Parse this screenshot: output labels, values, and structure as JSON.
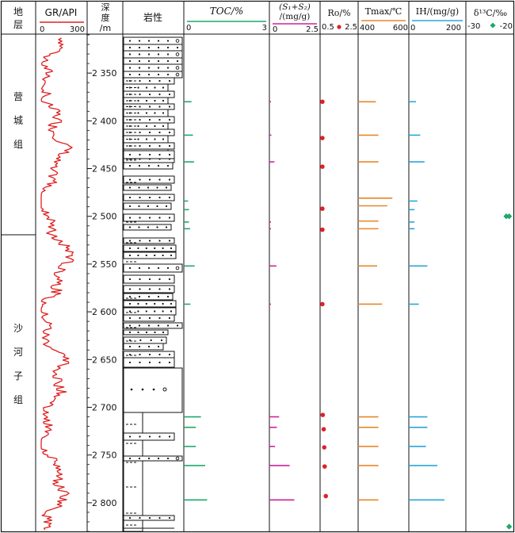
{
  "header": {
    "formation_title": "地层",
    "gr_title": "GR/API",
    "gr_min": "0",
    "gr_max": "300",
    "depth_title_1": "深",
    "depth_title_2": "度",
    "depth_title_3": "/m",
    "lith_title": "岩性",
    "toc_title": "TOC/%",
    "toc_min": "0",
    "toc_max": "3",
    "s_title_1": "(S₁+S₂)",
    "s_title_2": "/(mg/g)",
    "s_min": "0",
    "s_max": "2.5",
    "ro_title": "Ro/%",
    "ro_min": "0.5",
    "ro_max": "2.5",
    "tmax_title": "Tmax/℃",
    "tmax_min": "400",
    "tmax_max": "600",
    "ih_title": "IH/(mg/g)",
    "ih_min": "0",
    "ih_max": "200",
    "d13c_title": "δ¹³C/‰",
    "d13c_min": "-30",
    "d13c_max": "-20"
  },
  "formations": [
    {
      "name": "营城组",
      "chars": [
        "营",
        "城",
        "组"
      ]
    },
    {
      "name": "沙河子组",
      "chars": [
        "沙",
        "河",
        "子",
        "组"
      ]
    }
  ],
  "colors": {
    "gr": "#e02020",
    "toc": "#1fa86a",
    "s": "#d0229a",
    "ro": "#e0202a",
    "tmax": "#e8872a",
    "ih": "#28a6dc",
    "d13c": "#1fa86a",
    "border": "#111111"
  },
  "chart_data": {
    "type": "line",
    "y_axis": {
      "label": "深度/m",
      "range": [
        2310,
        2830
      ],
      "ticks": [
        "2 350",
        "2 400",
        "2 450",
        "2 500",
        "2 550",
        "2 600",
        "2 650",
        "2 700",
        "2 750",
        "2 800"
      ],
      "tick_values": [
        2350,
        2400,
        2450,
        2500,
        2550,
        2600,
        2650,
        2700,
        2750,
        2800
      ]
    },
    "formation_boundary_depth": 2512,
    "toc": {
      "unit": "%",
      "range": [
        0,
        3
      ],
      "depths": [
        2380,
        2415,
        2443,
        2484,
        2493,
        2506,
        2513,
        2552,
        2592,
        2710,
        2721,
        2741,
        2761,
        2797
      ],
      "values": [
        0.27,
        0.32,
        0.36,
        0.15,
        0.18,
        0.18,
        0.22,
        0.38,
        0.23,
        0.6,
        0.42,
        0.42,
        0.75,
        0.82
      ]
    },
    "s1_s2": {
      "unit": "mg/g",
      "range": [
        0,
        2.5
      ],
      "depths": [
        2380,
        2415,
        2443,
        2506,
        2513,
        2552,
        2592,
        2710,
        2721,
        2741,
        2761,
        2797
      ],
      "values": [
        0.06,
        0.1,
        0.25,
        0.05,
        0.05,
        0.35,
        0.06,
        0.48,
        0.37,
        0.28,
        1.0,
        1.23
      ]
    },
    "ro": {
      "unit": "%",
      "range": [
        0.5,
        2.5
      ],
      "depths": [
        2380,
        2418,
        2448,
        2492,
        2514,
        2592,
        2708,
        2723,
        2742,
        2762,
        2793
      ],
      "values": [
        0.62,
        0.62,
        0.62,
        0.62,
        0.62,
        0.62,
        0.64,
        0.69,
        0.72,
        0.74,
        0.8
      ]
    },
    "tmax": {
      "unit": "℃",
      "range": [
        400,
        600
      ],
      "depths": [
        2380,
        2415,
        2443,
        2481,
        2489,
        2505,
        2513,
        2552,
        2592,
        2710,
        2721,
        2741,
        2761,
        2797
      ],
      "values": [
        470,
        480,
        480,
        535,
        515,
        480,
        480,
        475,
        495,
        480,
        480,
        480,
        480,
        480
      ]
    },
    "ih": {
      "unit": "mg/g",
      "range": [
        0,
        200
      ],
      "depths": [
        2380,
        2415,
        2443,
        2484,
        2493,
        2506,
        2513,
        2552,
        2592,
        2710,
        2721,
        2741,
        2761,
        2797
      ],
      "values": [
        25,
        40,
        55,
        30,
        20,
        20,
        20,
        65,
        35,
        65,
        65,
        60,
        100,
        125
      ]
    },
    "d13c": {
      "unit": "‰",
      "range": [
        -30,
        -20
      ],
      "depths": [
        2500,
        2500,
        2825
      ],
      "values": [
        -21.5,
        -20.9,
        -20.9
      ]
    },
    "gr": {
      "unit": "API",
      "range": [
        0,
        300
      ]
    }
  }
}
